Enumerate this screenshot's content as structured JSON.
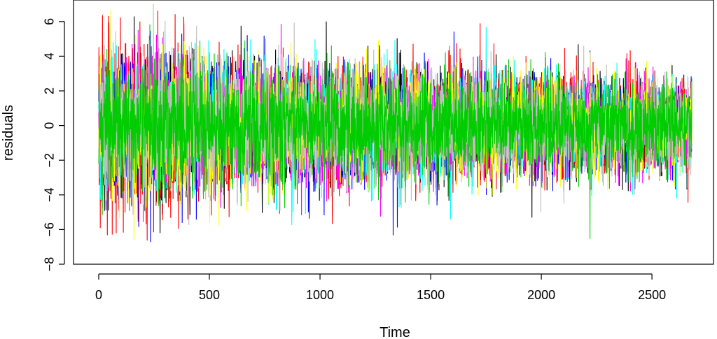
{
  "chart_data": {
    "type": "line",
    "title": "",
    "xlabel": "Time",
    "ylabel": "residuals",
    "xlim": [
      0,
      2680
    ],
    "ylim": [
      -8,
      7
    ],
    "grid": false,
    "legend": "none",
    "x_ticks": [
      0,
      500,
      1000,
      1500,
      2000,
      2500
    ],
    "x_tick_labels": [
      "0",
      "500",
      "1000",
      "1500",
      "2000",
      "2500"
    ],
    "y_ticks": [
      -8,
      -6,
      -4,
      -2,
      0,
      2,
      4,
      6
    ],
    "y_tick_labels": [
      "−8",
      "−6",
      "−4",
      "−2",
      "0",
      "2",
      "4",
      "6"
    ],
    "n_points_per_series": 2680,
    "series_colors": [
      "#000000",
      "#ff0000",
      "#0000ff",
      "#00ffff",
      "#ff00ff",
      "#ffff00",
      "#bebebe",
      "#00cd00"
    ],
    "series": [
      {
        "color": "#000000",
        "envelope_sd": [
          2.0,
          1.8,
          1.6,
          1.5,
          1.4,
          1.3
        ]
      },
      {
        "color": "#ff0000",
        "envelope_sd": [
          2.6,
          1.8,
          1.6,
          1.5,
          1.4,
          1.3
        ]
      },
      {
        "color": "#0000ff",
        "envelope_sd": [
          2.0,
          1.8,
          1.6,
          1.5,
          1.4,
          1.3
        ]
      },
      {
        "color": "#00ffff",
        "envelope_sd": [
          2.0,
          1.8,
          1.6,
          1.5,
          1.4,
          1.3
        ]
      },
      {
        "color": "#ff00ff",
        "envelope_sd": [
          2.0,
          1.8,
          1.6,
          1.5,
          1.4,
          1.3
        ]
      },
      {
        "color": "#ffff00",
        "envelope_sd": [
          2.0,
          1.8,
          1.6,
          1.5,
          1.4,
          1.3
        ]
      },
      {
        "color": "#bebebe",
        "envelope_sd": [
          2.0,
          1.8,
          1.6,
          1.5,
          1.4,
          1.3
        ]
      },
      {
        "color": "#00cd00",
        "envelope_sd": [
          1.8,
          1.7,
          1.5,
          1.5,
          1.4,
          1.3
        ]
      }
    ]
  }
}
